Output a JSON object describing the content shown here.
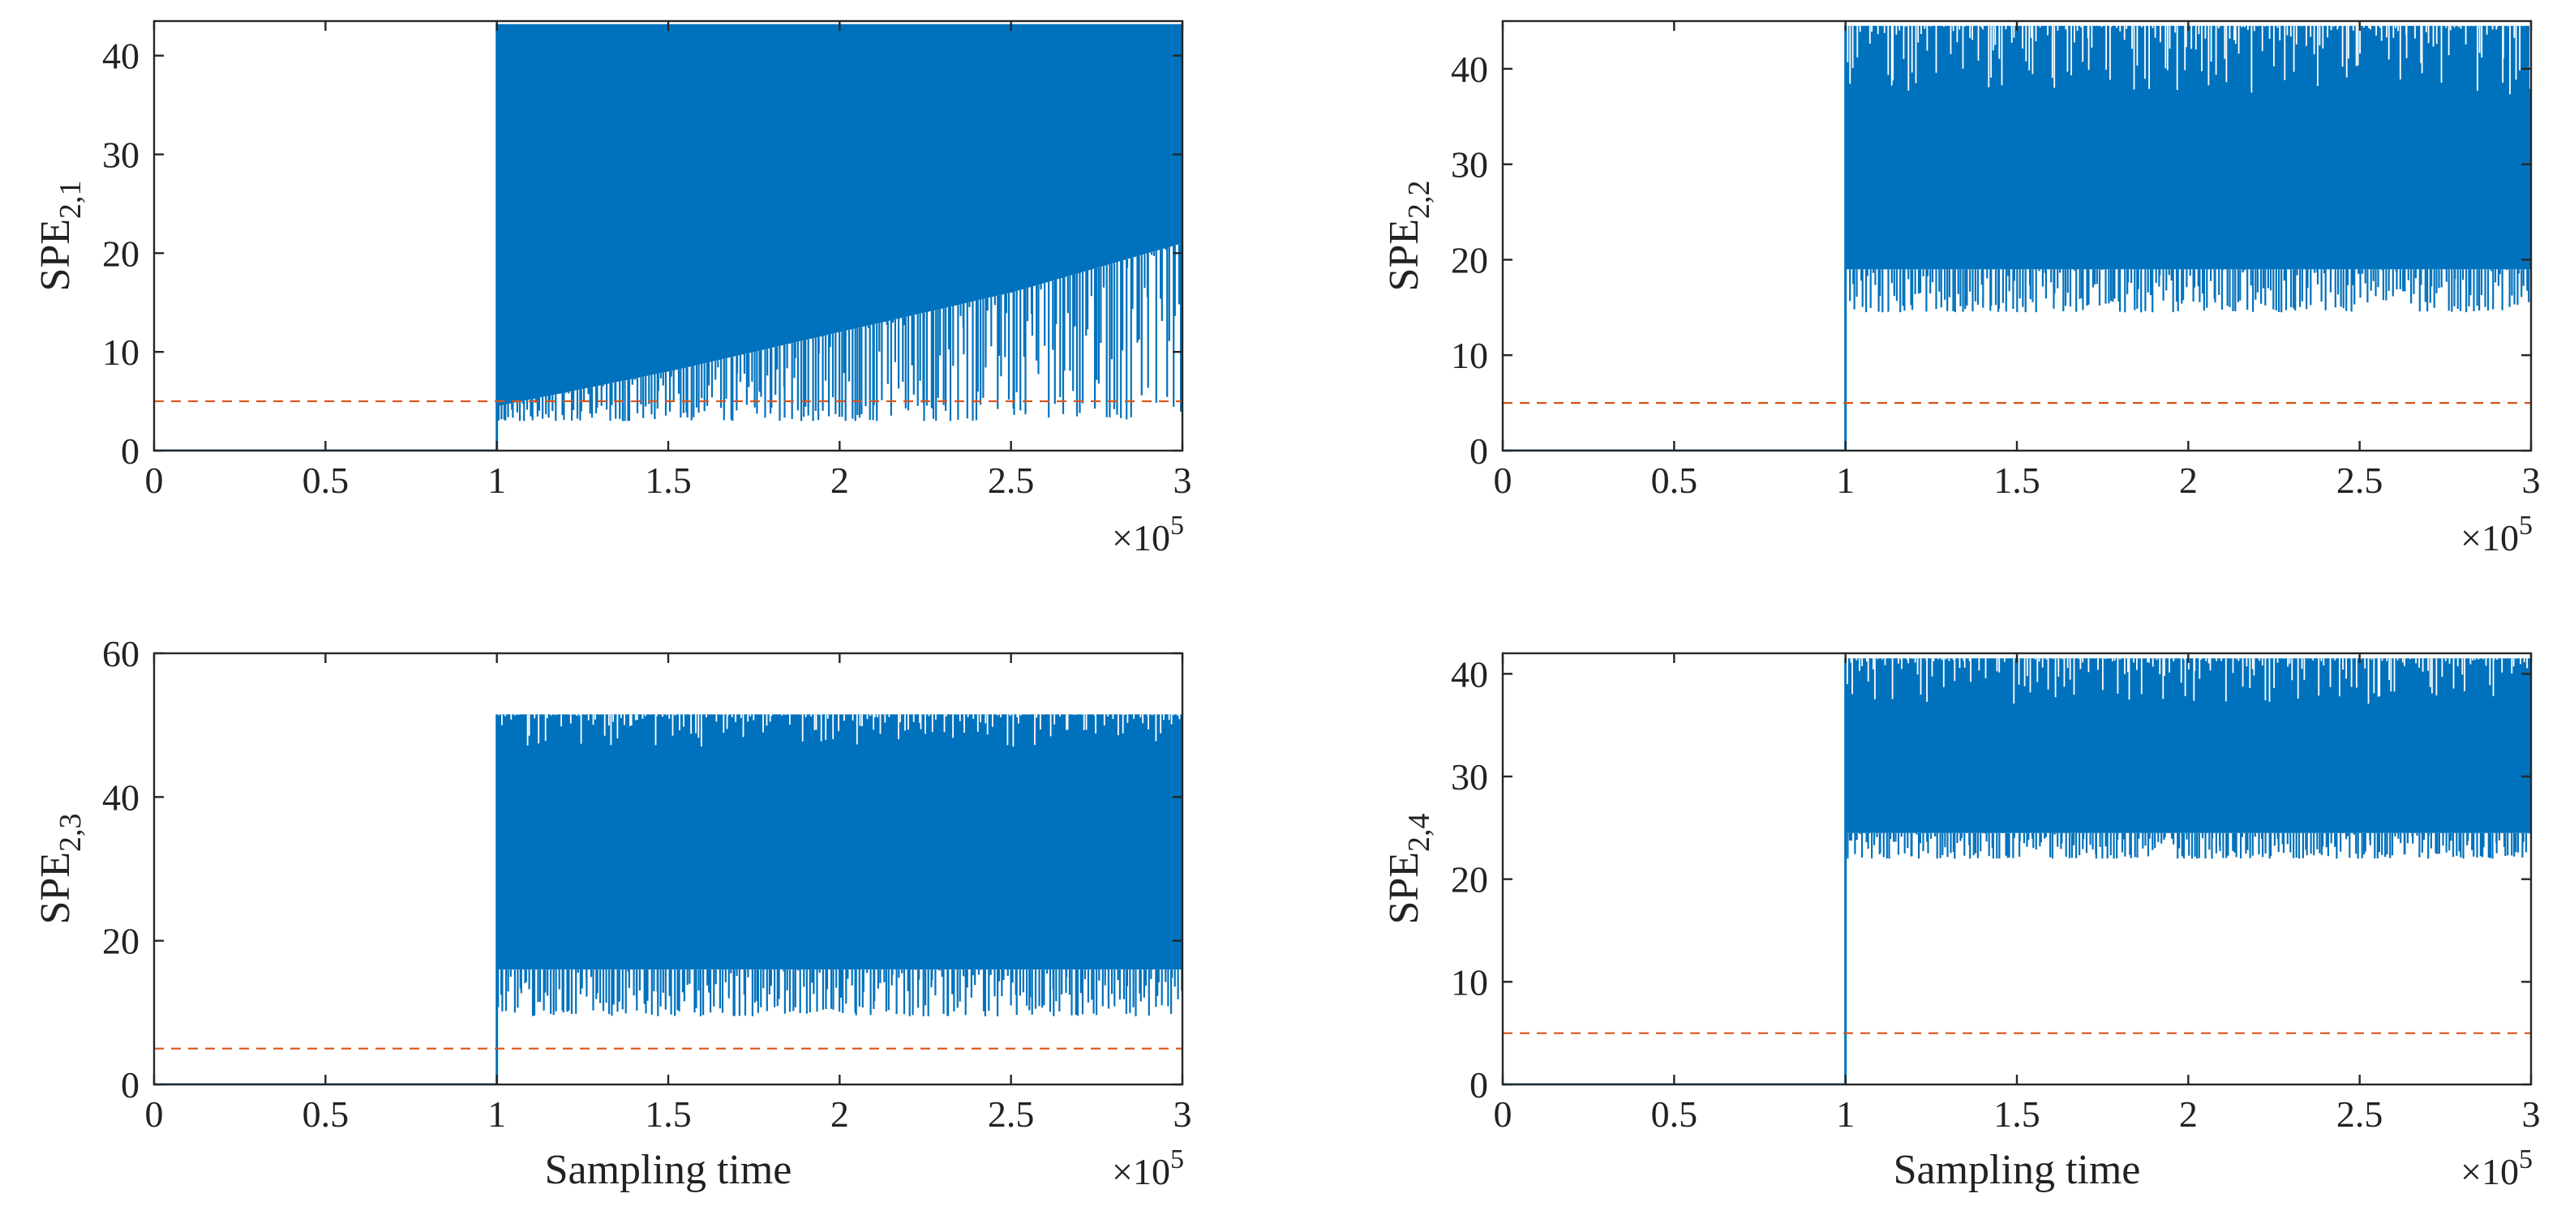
{
  "chart_data": [
    {
      "type": "line",
      "ylabel_base": "SPE",
      "ylabel_sub": "2,1",
      "xlabel": "",
      "x_multiplier": "×10",
      "x_exponent": "5",
      "xlim": [
        0,
        3
      ],
      "ylim": [
        0,
        43.5
      ],
      "xticks": [
        "0",
        "0.5",
        "1",
        "1.5",
        "2",
        "2.5",
        "3"
      ],
      "yticks": [
        0,
        10,
        20,
        30,
        40
      ],
      "series": [
        {
          "name": "SPE",
          "color": "#0072BD",
          "fault_onset": 1.0,
          "pre_fault_value": 0,
          "band_x": [
            1.0,
            1.5,
            2.0,
            2.5,
            3.0
          ],
          "band_upper": [
            43.2,
            43.2,
            43.2,
            43.2,
            43.2
          ],
          "band_lower_solid": [
            4.5,
            8.0,
            12.0,
            16.0,
            21.0
          ],
          "spike_min": [
            3.0,
            3.0,
            3.0,
            3.0,
            3.0
          ]
        },
        {
          "name": "threshold",
          "color": "#D95319",
          "style": "dashed",
          "value": 5.0
        }
      ]
    },
    {
      "type": "line",
      "ylabel_base": "SPE",
      "ylabel_sub": "2,2",
      "xlabel": "",
      "x_multiplier": "×10",
      "x_exponent": "5",
      "xlim": [
        0,
        3
      ],
      "ylim": [
        0,
        45
      ],
      "xticks": [
        "0",
        "0.5",
        "1",
        "1.5",
        "2",
        "2.5",
        "3"
      ],
      "yticks": [
        0,
        10,
        20,
        30,
        40
      ],
      "series": [
        {
          "name": "SPE",
          "color": "#0072BD",
          "fault_onset": 1.0,
          "pre_fault_value": 0,
          "band_x": [
            1.0,
            3.0
          ],
          "band_upper": [
            44.5,
            44.5
          ],
          "band_lower_solid": [
            19.0,
            19.0
          ],
          "spike_min": [
            14.5,
            14.5
          ],
          "upper_dip_max": 37.0
        },
        {
          "name": "threshold",
          "color": "#D95319",
          "style": "dashed",
          "value": 5.0
        }
      ]
    },
    {
      "type": "line",
      "ylabel_base": "SPE",
      "ylabel_sub": "2,3",
      "xlabel": "Sampling time",
      "x_multiplier": "×10",
      "x_exponent": "5",
      "xlim": [
        0,
        3
      ],
      "ylim": [
        0,
        60
      ],
      "xticks": [
        "0",
        "0.5",
        "1",
        "1.5",
        "2",
        "2.5",
        "3"
      ],
      "yticks": [
        0,
        20,
        40,
        60
      ],
      "series": [
        {
          "name": "SPE",
          "color": "#0072BD",
          "fault_onset": 1.0,
          "pre_fault_value": 0,
          "band_x": [
            1.0,
            3.0
          ],
          "band_upper": [
            51.5,
            51.5
          ],
          "band_lower_solid": [
            16.0,
            16.0
          ],
          "spike_min": [
            9.5,
            9.5
          ],
          "upper_dip_max": 47.0
        },
        {
          "name": "threshold",
          "color": "#D95319",
          "style": "dashed",
          "value": 5.0
        }
      ]
    },
    {
      "type": "line",
      "ylabel_base": "SPE",
      "ylabel_sub": "2,4",
      "xlabel": "Sampling time",
      "x_multiplier": "×10",
      "x_exponent": "5",
      "xlim": [
        0,
        3
      ],
      "ylim": [
        0,
        42
      ],
      "xticks": [
        "0",
        "0.5",
        "1",
        "1.5",
        "2",
        "2.5",
        "3"
      ],
      "yticks": [
        0,
        10,
        20,
        30,
        40
      ],
      "series": [
        {
          "name": "SPE",
          "color": "#0072BD",
          "fault_onset": 1.0,
          "pre_fault_value": 0,
          "band_x": [
            1.0,
            3.0
          ],
          "band_upper": [
            41.5,
            41.5
          ],
          "band_lower_solid": [
            24.5,
            24.5
          ],
          "spike_min": [
            22.0,
            22.0
          ],
          "upper_dip_max": 37.0
        },
        {
          "name": "threshold",
          "color": "#D95319",
          "style": "dashed",
          "value": 5.0
        }
      ]
    }
  ]
}
